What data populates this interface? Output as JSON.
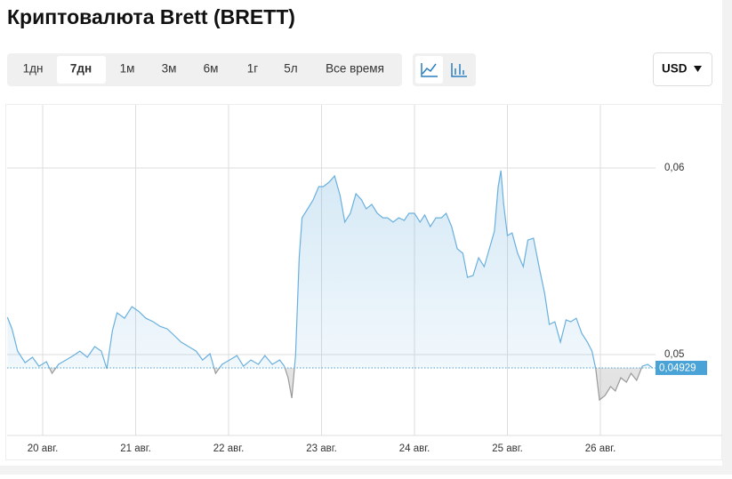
{
  "chart_data": {
    "type": "area-line",
    "title": "Криптовалюта Brett (BRETT)",
    "toolbar": {
      "ranges": [
        "1дн",
        "7дн",
        "1м",
        "3м",
        "6м",
        "1г",
        "5л",
        "Все время"
      ],
      "currency": "USD"
    },
    "x": [
      19.62,
      19.67,
      19.73,
      19.81,
      19.89,
      19.96,
      20.04,
      20.1,
      20.17,
      20.25,
      20.33,
      20.4,
      20.48,
      20.56,
      20.63,
      20.69,
      20.75,
      20.8,
      20.88,
      20.96,
      21.03,
      21.11,
      21.19,
      21.26,
      21.34,
      21.42,
      21.49,
      21.57,
      21.65,
      21.72,
      21.8,
      21.86,
      21.93,
      22.01,
      22.09,
      22.16,
      22.24,
      22.32,
      22.39,
      22.47,
      22.55,
      22.6,
      22.64,
      22.68,
      22.72,
      22.76,
      22.79,
      22.85,
      22.91,
      22.97,
      23.02,
      23.08,
      23.14,
      23.2,
      23.25,
      23.31,
      23.37,
      23.43,
      23.48,
      23.54,
      23.6,
      23.66,
      23.71,
      23.77,
      23.83,
      23.89,
      23.94,
      24.0,
      24.06,
      24.11,
      24.17,
      24.23,
      24.29,
      24.34,
      24.4,
      24.46,
      24.52,
      24.57,
      24.63,
      24.69,
      24.75,
      24.8,
      24.86,
      24.9,
      24.93,
      24.96,
      25.0,
      25.05,
      25.11,
      25.17,
      25.22,
      25.28,
      25.34,
      25.4,
      25.45,
      25.51,
      25.57,
      25.63,
      25.68,
      25.74,
      25.8,
      25.86,
      25.91,
      25.95,
      25.99,
      26.05,
      26.11,
      26.16,
      26.22,
      26.28,
      26.33,
      26.39,
      26.45,
      26.51,
      26.56
    ],
    "values": [
      0.052,
      0.05138,
      0.05019,
      0.04957,
      0.04986,
      0.04938,
      0.04962,
      0.049,
      0.04948,
      0.04971,
      0.04995,
      0.05019,
      0.04986,
      0.05043,
      0.05019,
      0.04924,
      0.05129,
      0.05224,
      0.05195,
      0.05257,
      0.05233,
      0.05195,
      0.05176,
      0.05152,
      0.05138,
      0.051,
      0.05067,
      0.05043,
      0.05019,
      0.04971,
      0.05005,
      0.049,
      0.04948,
      0.04971,
      0.04995,
      0.04938,
      0.04971,
      0.04948,
      0.04995,
      0.04948,
      0.04971,
      0.04938,
      0.04876,
      0.04767,
      0.04995,
      0.05519,
      0.05733,
      0.05781,
      0.05829,
      0.059,
      0.059,
      0.05924,
      0.05957,
      0.05852,
      0.0571,
      0.05757,
      0.05862,
      0.05829,
      0.05781,
      0.05805,
      0.05757,
      0.05733,
      0.05733,
      0.0571,
      0.05733,
      0.05719,
      0.05757,
      0.05757,
      0.0571,
      0.05748,
      0.05686,
      0.05733,
      0.05733,
      0.05757,
      0.05686,
      0.05567,
      0.05543,
      0.05414,
      0.05424,
      0.05519,
      0.05471,
      0.05557,
      0.05662,
      0.059,
      0.05986,
      0.05805,
      0.05638,
      0.05652,
      0.05543,
      0.05471,
      0.05614,
      0.05624,
      0.05471,
      0.05329,
      0.05162,
      0.05176,
      0.05067,
      0.05186,
      0.05176,
      0.05195,
      0.05114,
      0.05067,
      0.05019,
      0.04924,
      0.04757,
      0.04781,
      0.04829,
      0.04805,
      0.04876,
      0.04852,
      0.049,
      0.04862,
      0.04938,
      0.04948,
      0.04929
    ],
    "color": "#6ab0de",
    "below_color": "#9a9a9a",
    "xlim": [
      19.617,
      26.593
    ],
    "xticks": [
      {
        "value": 20,
        "label": "20 авг."
      },
      {
        "value": 21,
        "label": "21 авг."
      },
      {
        "value": 22,
        "label": "22 авг."
      },
      {
        "value": 23,
        "label": "23 авг."
      },
      {
        "value": 24,
        "label": "24 авг."
      },
      {
        "value": 25,
        "label": "25 авг."
      },
      {
        "value": 26,
        "label": "26 авг."
      }
    ],
    "ylim": [
      0.04567,
      0.06338
    ],
    "yticks": [
      {
        "value": 0.05,
        "label": "0,05"
      },
      {
        "value": 0.06,
        "label": "0,06"
      }
    ],
    "current_price": {
      "value": 0.04929,
      "label": "0,04929"
    },
    "grid": true
  }
}
